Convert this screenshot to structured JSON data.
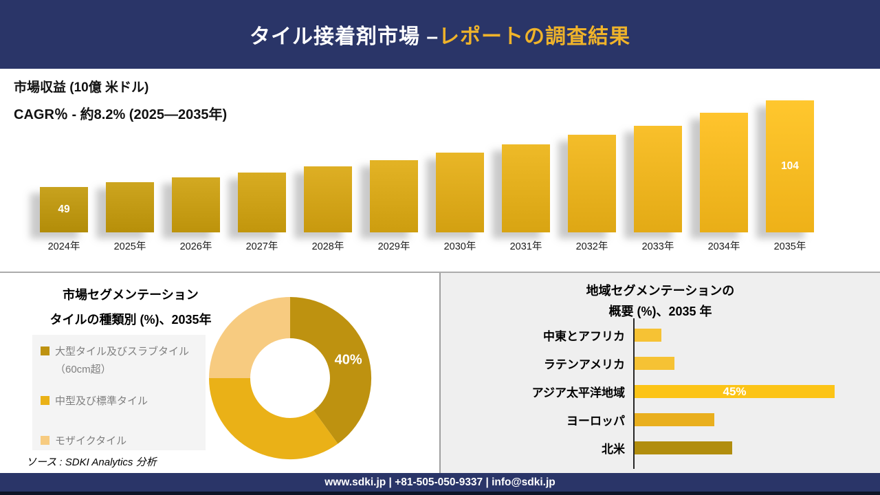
{
  "header": {
    "title_white": "タイル接着剤市場 –",
    "title_gold": "レポートの調査結果"
  },
  "revenue": {
    "title": "市場収益 (10億 米ドル)",
    "cagr": "CAGR％ - 約8.2% (2025―2035年)"
  },
  "segmentation": {
    "title_line1": "市場セグメンテーション",
    "title_line2": "タイルの種類別 (%)、2035年",
    "legend": [
      {
        "label": "大型タイル及びスラブタイル",
        "label2": "（60cm超）",
        "color": "#BE9210"
      },
      {
        "label": "中型及び標準タイル",
        "label2": "",
        "color": "#EAB117"
      },
      {
        "label": "モザイクタイル",
        "label2": "",
        "color": "#F7CB80"
      }
    ]
  },
  "regional": {
    "title_line1": "地域セグメンテーションの",
    "title_line2": "概要 (%)、2035 年"
  },
  "source_note": {
    "text": "ソース : SDKI Analytics 分析"
  },
  "footer": {
    "text": "www.sdki.jp | +81-505-050-9337 | info@sdki.jp"
  },
  "colors": {
    "navy": "#2A3568",
    "gold_title": "#EFB32A",
    "bar_color_start": "#B8920E",
    "bar_color_end": "#F4B71E"
  },
  "chart_data": [
    {
      "type": "bar",
      "orientation": "vertical",
      "title": "市場収益 (10億 米ドル)",
      "subtitle": "CAGR％ - 約8.2% (2025―2035年)",
      "categories": [
        "2024年",
        "2025年",
        "2026年",
        "2027年",
        "2028年",
        "2029年",
        "2030年",
        "2031年",
        "2032年",
        "2033年",
        "2034年",
        "2035年"
      ],
      "values": [
        49,
        52,
        55,
        58,
        62,
        66,
        71,
        76,
        82,
        88,
        96,
        104
      ],
      "labeled_indices": [
        0,
        11
      ],
      "labeled_values": {
        "2024年": "49",
        "2035年": "104"
      },
      "note": "only first and last bars carry data labels; intermediate values estimated from bar heights",
      "grid": false,
      "legend_position": "none"
    },
    {
      "type": "pie",
      "donut": true,
      "title": "市場セグメンテーション",
      "subtitle": "タイルの種類別 (%)、2035年",
      "labels": [
        "大型タイル及びスラブタイル（60cm超）",
        "中型及び標準タイル",
        "モザイクタイル"
      ],
      "values": [
        40,
        35,
        25
      ],
      "colors": [
        "#BE9210",
        "#EAB117",
        "#F7CB80"
      ],
      "shown_label": "40%",
      "start_angle_deg": 0,
      "legend_position": "left"
    },
    {
      "type": "bar",
      "orientation": "horizontal",
      "title": "地域セグメンテーションの概要 (%)、2035 年",
      "categories": [
        "中東とアフリカ",
        "ラテンアメリカ",
        "アジア太平洋地域",
        "ヨーロッパ",
        "北米"
      ],
      "values": [
        6,
        9,
        45,
        18,
        22
      ],
      "colors": [
        "#F6C234",
        "#F6C234",
        "#FCC417",
        "#E9AF1E",
        "#B18D0E"
      ],
      "shown_label": {
        "category": "アジア太平洋地域",
        "text": "45%"
      },
      "grid": false,
      "legend_position": "none"
    }
  ]
}
